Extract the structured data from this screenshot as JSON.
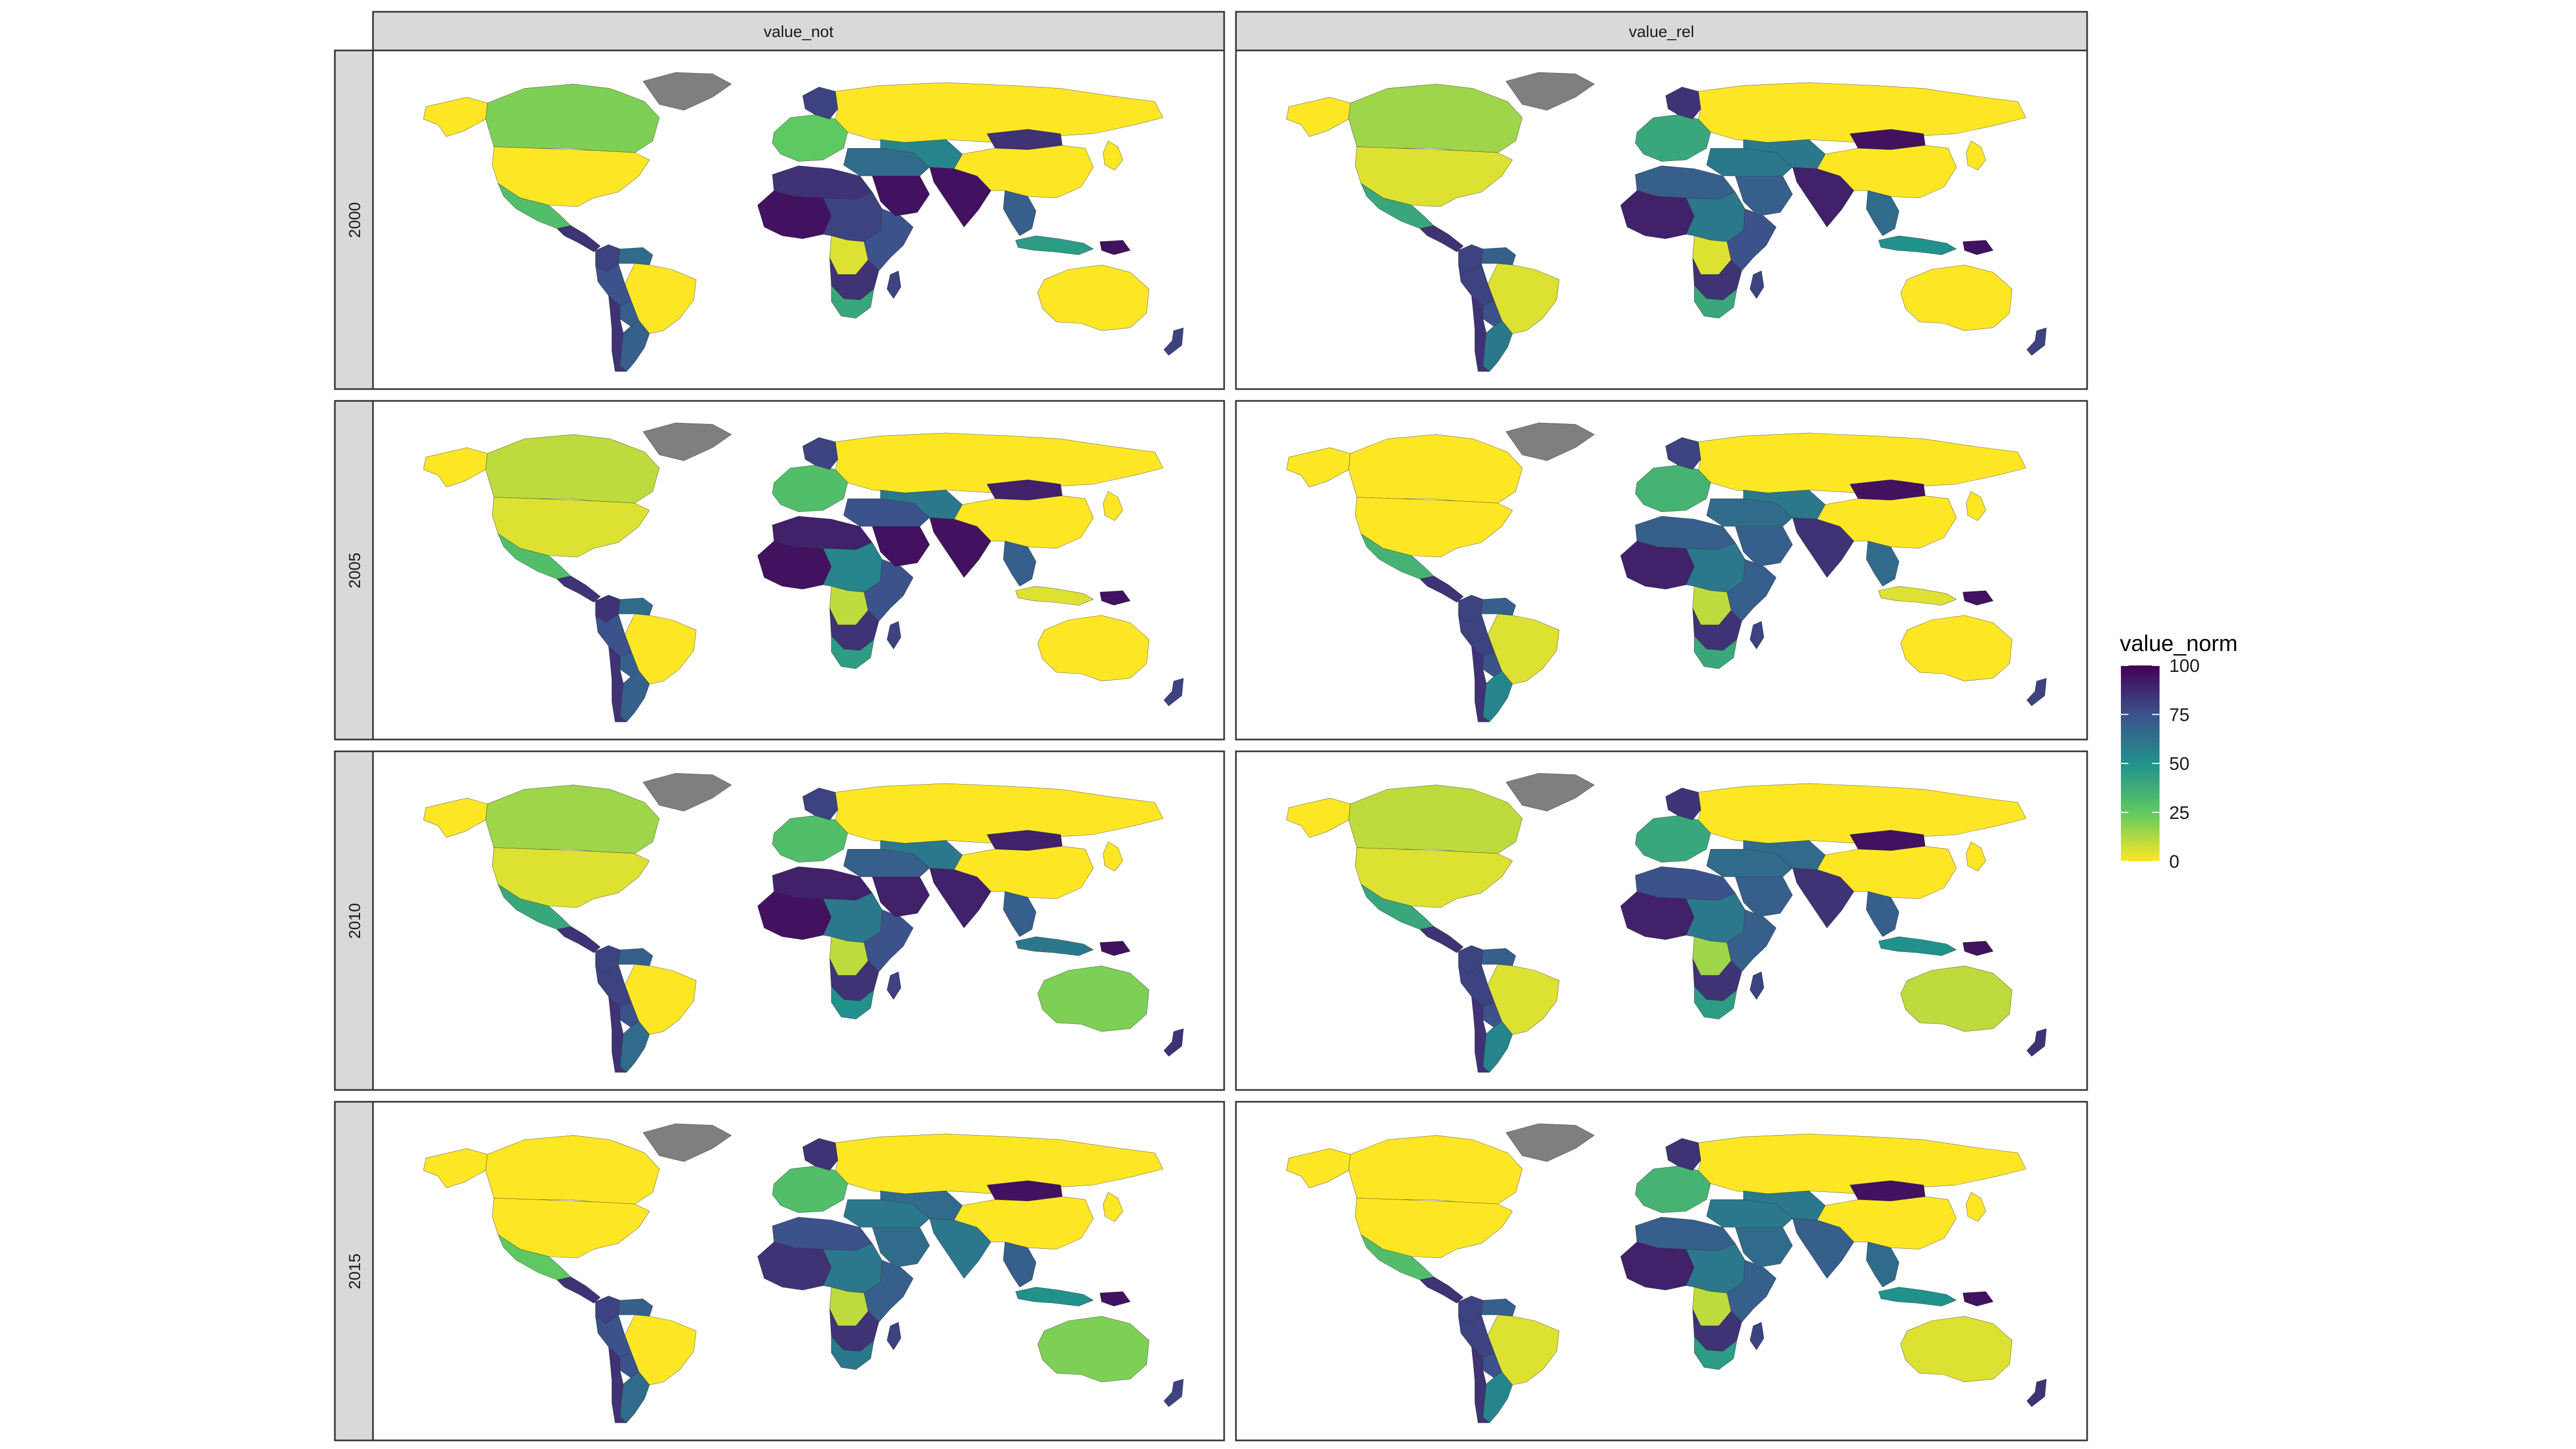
{
  "chart_data": {
    "type": "choropleth-facet-grid",
    "columns": [
      "value_not",
      "value_rel"
    ],
    "rows": [
      "2000",
      "2005",
      "2010",
      "2015"
    ],
    "legend": {
      "title": "value_norm",
      "ticks": [
        100,
        75,
        50,
        25,
        0
      ],
      "range": [
        0,
        100
      ],
      "placement": "right",
      "no_data_color": "#7f7f7f"
    },
    "scale_colors": [
      "#fde725",
      "#5ec962",
      "#21918c",
      "#3b528b",
      "#440154"
    ],
    "panels": [
      {
        "row": "2000",
        "col": "value_not",
        "regions": {
          "canada": 20,
          "usa": 0,
          "alaska": 0,
          "mexico": 30,
          "central-america": 85,
          "colombia": 80,
          "venezuela": 65,
          "brazil": 0,
          "peru": 75,
          "bolivia": 70,
          "argentina": 70,
          "chile": 85,
          "greenland": null,
          "west-africa": 95,
          "north-africa": 85,
          "central-africa": 80,
          "congo": 5,
          "east-africa": 75,
          "southern-africa": 85,
          "south-africa": 40,
          "madagascar": 80,
          "europe": 25,
          "scandinavia": 80,
          "russia": 0,
          "middle-east": 65,
          "arabia": 95,
          "central-asia": 55,
          "india": 95,
          "mongolia": 85,
          "china": 0,
          "southeast-asia": 70,
          "indonesia": 45,
          "png": 95,
          "australia": 0,
          "new-zealand": 80,
          "japan": 0
        }
      },
      {
        "row": "2000",
        "col": "value_rel",
        "regions": {
          "canada": 15,
          "usa": 5,
          "alaska": 0,
          "mexico": 40,
          "central-america": 85,
          "colombia": 80,
          "venezuela": 70,
          "brazil": 5,
          "peru": 80,
          "bolivia": 75,
          "argentina": 60,
          "chile": 85,
          "greenland": null,
          "west-africa": 90,
          "north-africa": 70,
          "central-africa": 60,
          "congo": 5,
          "east-africa": 75,
          "southern-africa": 85,
          "south-africa": 40,
          "madagascar": 80,
          "europe": 40,
          "scandinavia": 85,
          "russia": 0,
          "middle-east": 60,
          "arabia": 70,
          "central-asia": 60,
          "india": 90,
          "mongolia": 95,
          "china": 0,
          "southeast-asia": 65,
          "indonesia": 50,
          "png": 95,
          "australia": 0,
          "new-zealand": 80,
          "japan": 0
        }
      },
      {
        "row": "2005",
        "col": "value_not",
        "regions": {
          "canada": 10,
          "usa": 5,
          "alaska": 0,
          "mexico": 30,
          "central-america": 85,
          "colombia": 85,
          "venezuela": 65,
          "brazil": 0,
          "peru": 75,
          "bolivia": 70,
          "argentina": 70,
          "chile": 85,
          "greenland": null,
          "west-africa": 95,
          "north-africa": 90,
          "central-africa": 55,
          "congo": 10,
          "east-africa": 75,
          "southern-africa": 85,
          "south-africa": 45,
          "madagascar": 80,
          "europe": 30,
          "scandinavia": 80,
          "russia": 0,
          "middle-east": 75,
          "arabia": 95,
          "central-asia": 60,
          "india": 95,
          "mongolia": 90,
          "china": 0,
          "southeast-asia": 70,
          "indonesia": 5,
          "png": 95,
          "australia": 0,
          "new-zealand": 80,
          "japan": 0
        }
      },
      {
        "row": "2005",
        "col": "value_rel",
        "regions": {
          "canada": 0,
          "usa": 0,
          "alaska": 0,
          "mexico": 35,
          "central-america": 85,
          "colombia": 80,
          "venezuela": 70,
          "brazil": 5,
          "peru": 80,
          "bolivia": 75,
          "argentina": 55,
          "chile": 85,
          "greenland": null,
          "west-africa": 90,
          "north-africa": 70,
          "central-africa": 60,
          "congo": 10,
          "east-africa": 70,
          "southern-africa": 85,
          "south-africa": 40,
          "madagascar": 80,
          "europe": 35,
          "scandinavia": 80,
          "russia": 0,
          "middle-east": 65,
          "arabia": 70,
          "central-asia": 60,
          "india": 85,
          "mongolia": 95,
          "china": 0,
          "southeast-asia": 65,
          "indonesia": 5,
          "png": 95,
          "australia": 0,
          "new-zealand": 80,
          "japan": 0
        }
      },
      {
        "row": "2010",
        "col": "value_not",
        "regions": {
          "canada": 15,
          "usa": 5,
          "alaska": 0,
          "mexico": 40,
          "central-america": 85,
          "colombia": 80,
          "venezuela": 70,
          "brazil": 0,
          "peru": 80,
          "bolivia": 75,
          "argentina": 65,
          "chile": 85,
          "greenland": null,
          "west-africa": 95,
          "north-africa": 90,
          "central-africa": 60,
          "congo": 10,
          "east-africa": 75,
          "southern-africa": 85,
          "south-africa": 50,
          "madagascar": 80,
          "europe": 30,
          "scandinavia": 80,
          "russia": 0,
          "middle-east": 70,
          "arabia": 90,
          "central-asia": 60,
          "india": 90,
          "mongolia": 90,
          "china": 0,
          "southeast-asia": 70,
          "indonesia": 60,
          "png": 95,
          "australia": 20,
          "new-zealand": 85,
          "japan": 0
        }
      },
      {
        "row": "2010",
        "col": "value_rel",
        "regions": {
          "canada": 10,
          "usa": 5,
          "alaska": 0,
          "mexico": 40,
          "central-america": 85,
          "colombia": 80,
          "venezuela": 70,
          "brazil": 5,
          "peru": 80,
          "bolivia": 75,
          "argentina": 55,
          "chile": 85,
          "greenland": null,
          "west-africa": 90,
          "north-africa": 75,
          "central-africa": 60,
          "congo": 15,
          "east-africa": 70,
          "southern-africa": 85,
          "south-africa": 45,
          "madagascar": 80,
          "europe": 40,
          "scandinavia": 85,
          "russia": 0,
          "middle-east": 65,
          "arabia": 70,
          "central-asia": 65,
          "india": 85,
          "mongolia": 95,
          "china": 0,
          "southeast-asia": 70,
          "indonesia": 50,
          "png": 95,
          "australia": 10,
          "new-zealand": 85,
          "japan": 0
        }
      },
      {
        "row": "2015",
        "col": "value_not",
        "regions": {
          "canada": 0,
          "usa": 0,
          "alaska": 0,
          "mexico": 25,
          "central-america": 85,
          "colombia": 80,
          "venezuela": 70,
          "brazil": 0,
          "peru": 75,
          "bolivia": 75,
          "argentina": 65,
          "chile": 85,
          "greenland": null,
          "west-africa": 85,
          "north-africa": 75,
          "central-africa": 60,
          "congo": 10,
          "east-africa": 70,
          "southern-africa": 85,
          "south-africa": 60,
          "madagascar": 80,
          "europe": 30,
          "scandinavia": 85,
          "russia": 0,
          "middle-east": 60,
          "arabia": 65,
          "central-asia": 65,
          "india": 60,
          "mongolia": 95,
          "china": 0,
          "southeast-asia": 70,
          "indonesia": 50,
          "png": 95,
          "australia": 20,
          "new-zealand": 80,
          "japan": 0
        }
      },
      {
        "row": "2015",
        "col": "value_rel",
        "regions": {
          "canada": 0,
          "usa": 0,
          "alaska": 0,
          "mexico": 30,
          "central-america": 85,
          "colombia": 80,
          "venezuela": 70,
          "brazil": 5,
          "peru": 80,
          "bolivia": 75,
          "argentina": 55,
          "chile": 85,
          "greenland": null,
          "west-africa": 90,
          "north-africa": 70,
          "central-africa": 60,
          "congo": 10,
          "east-africa": 70,
          "southern-africa": 85,
          "south-africa": 45,
          "madagascar": 80,
          "europe": 35,
          "scandinavia": 85,
          "russia": 0,
          "middle-east": 60,
          "arabia": 65,
          "central-asia": 60,
          "india": 70,
          "mongolia": 95,
          "china": 0,
          "southeast-asia": 65,
          "indonesia": 50,
          "png": 95,
          "australia": 5,
          "new-zealand": 85,
          "japan": 0
        }
      }
    ]
  }
}
